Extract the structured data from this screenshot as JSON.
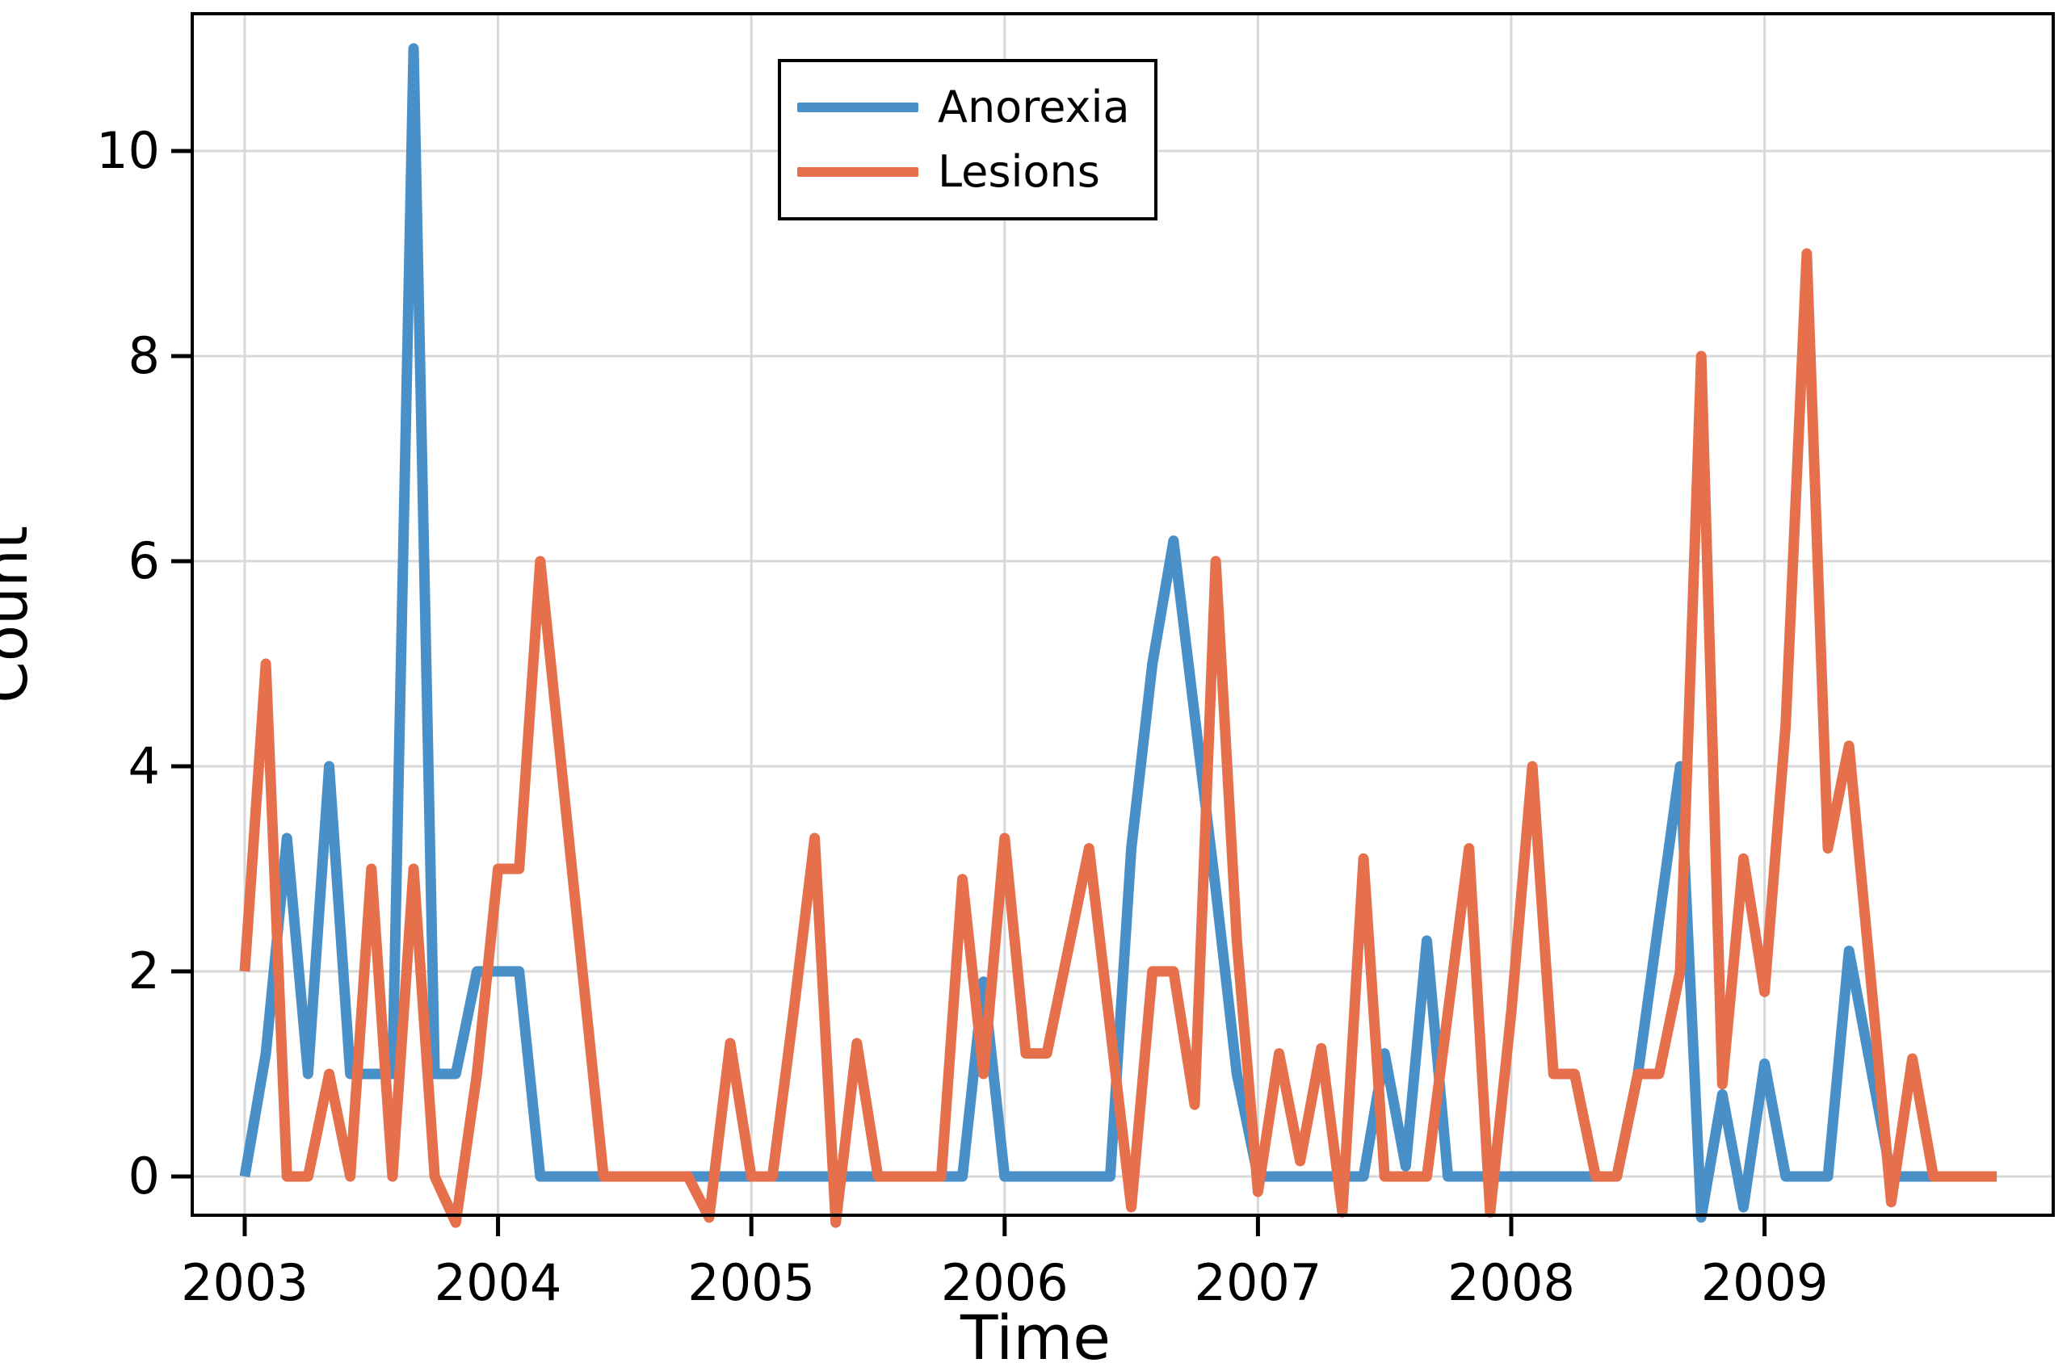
{
  "chart_data": {
    "type": "line",
    "title": "",
    "xlabel": "Time",
    "ylabel": "Count",
    "grid": true,
    "legend_position": "top-center",
    "x_start_year": 2003,
    "x_step_months": 1,
    "xlim": [
      2002.7928,
      2010.1396
    ],
    "ylim": [
      -0.378,
      11.339
    ],
    "x_ticks": [
      2003,
      2004,
      2005,
      2006,
      2007,
      2008,
      2009
    ],
    "y_ticks": [
      0,
      2,
      4,
      6,
      8,
      10
    ],
    "colors": {
      "grid": "#d8d8d8",
      "frame": "#000000",
      "tick_text": "#000000"
    },
    "series": [
      {
        "name": "Anorexia",
        "color": "#4A90C8",
        "values": [
          0,
          1.2,
          3.3,
          1,
          4,
          1,
          1,
          1,
          11,
          1,
          1,
          2,
          2,
          2,
          0,
          0,
          0,
          0,
          0,
          0,
          0,
          0,
          0,
          0,
          0,
          0,
          0,
          0,
          0,
          0,
          0,
          0,
          0,
          0,
          0,
          1.9,
          0,
          0,
          0,
          0,
          0,
          0,
          3.2,
          5,
          6.2,
          4.5,
          2.8,
          1,
          0,
          0,
          0,
          0,
          0,
          0,
          1.2,
          0.1,
          2.3,
          0,
          0,
          0,
          0,
          0,
          0,
          0,
          0,
          0,
          1,
          2.5,
          4,
          -0.4,
          0.8,
          -0.3,
          1.1,
          0,
          0,
          0,
          2.2,
          1.1,
          0,
          0,
          0
        ]
      },
      {
        "name": "Lesions",
        "color": "#E5704B",
        "values": [
          2,
          5,
          0,
          0,
          1,
          0,
          3,
          0,
          3,
          0,
          -0.45,
          1,
          3,
          3,
          6,
          4,
          2,
          0,
          0,
          0,
          0,
          0,
          -0.4,
          1.3,
          0,
          0,
          1.6,
          3.3,
          -0.45,
          1.3,
          0,
          0,
          0,
          0,
          2.9,
          1,
          3.3,
          1.2,
          1.2,
          2.2,
          3.2,
          1.45,
          -0.3,
          2,
          2,
          0.7,
          6,
          2.3,
          -0.15,
          1.2,
          0.15,
          1.25,
          -0.35,
          3.1,
          0,
          0,
          0,
          1.6,
          3.2,
          -0.35,
          1.6,
          4,
          1,
          1,
          0,
          0,
          1,
          1,
          2,
          8,
          0.9,
          3.1,
          1.8,
          4.4,
          9,
          3.2,
          4.2,
          2,
          -0.25,
          1.15,
          0,
          0,
          0,
          0
        ]
      }
    ]
  }
}
